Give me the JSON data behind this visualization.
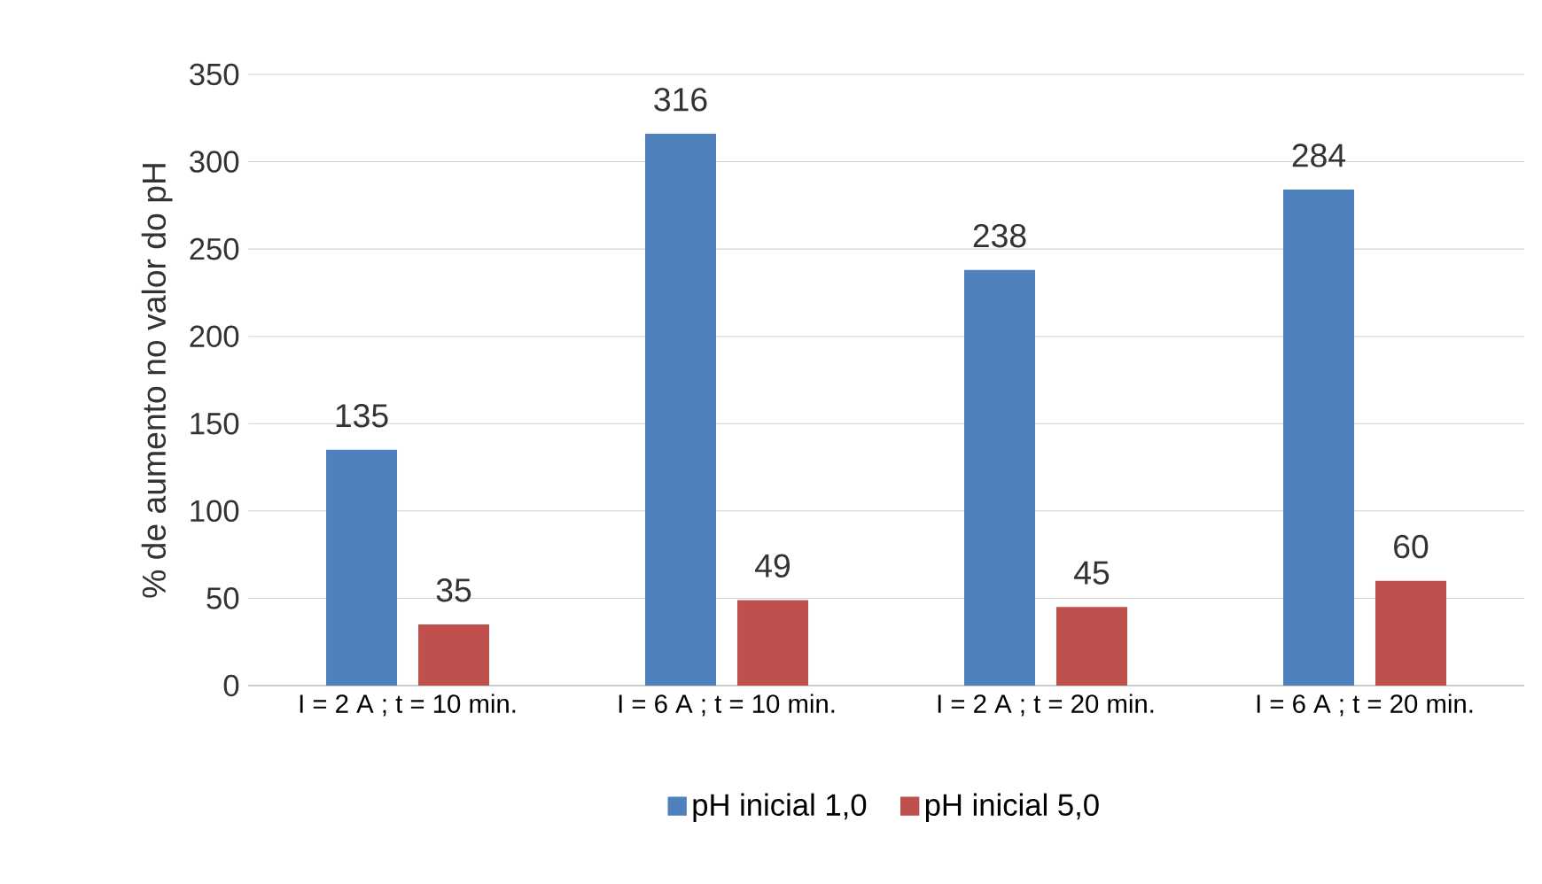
{
  "chart_data": {
    "type": "bar",
    "ylabel": "% de aumento no valor do pH",
    "categories": [
      "I = 2 A ; t = 10 min.",
      "I = 6 A ; t = 10 min.",
      "I = 2 A ; t = 20 min.",
      "I = 6 A ; t = 20 min."
    ],
    "series": [
      {
        "name": "pH inicial 1,0",
        "color": "#4f81bd",
        "values": [
          135,
          316,
          238,
          284
        ]
      },
      {
        "name": "pH inicial 5,0",
        "color": "#c0504d",
        "values": [
          35,
          49,
          45,
          60
        ]
      }
    ],
    "ylim": [
      0,
      350
    ],
    "yticks": [
      0,
      50,
      100,
      150,
      200,
      250,
      300,
      350
    ],
    "grid": "y",
    "legend": "bottom",
    "data_labels": true
  }
}
